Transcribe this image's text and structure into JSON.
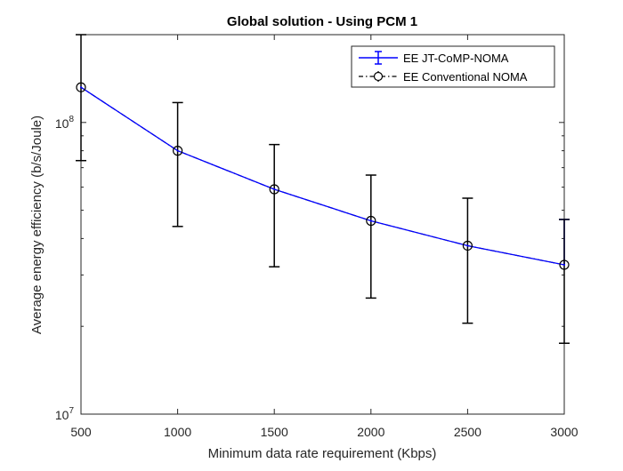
{
  "chart_data": {
    "type": "line",
    "title": "Global solution - Using PCM 1",
    "xlabel": "Minimum data rate requirement (Kbps)",
    "ylabel": "Average energy efficiency (b/s/Joule)",
    "xlim": [
      500,
      3000
    ],
    "ylim": [
      10000000,
      200000000
    ],
    "yscale": "log",
    "x_ticks": [
      500,
      1000,
      1500,
      2000,
      2500,
      3000
    ],
    "x_tick_labels": [
      "500",
      "1000",
      "1500",
      "2000",
      "2500",
      "3000"
    ],
    "y_ticks": [
      {
        "value": 10000000,
        "base": "10",
        "exp": "7"
      },
      {
        "value": 100000000,
        "base": "10",
        "exp": "8"
      }
    ],
    "grid": false,
    "legend_position": "top-right",
    "x": [
      500,
      1000,
      1500,
      2000,
      2500,
      3000
    ],
    "series": [
      {
        "name": "EE JT-CoMP-NOMA",
        "color": "#0000ff",
        "marker": "none",
        "values": [
          132000000,
          80000000,
          59000000,
          46000000,
          37800000,
          32500000
        ],
        "err_low": [
          null,
          null,
          null,
          null,
          null,
          null
        ],
        "err_high": [
          null,
          null,
          null,
          null,
          null,
          46500000
        ]
      },
      {
        "name": "EE Conventional NOMA",
        "color": "#000000",
        "marker": "circle",
        "values": [
          132000000,
          80000000,
          59000000,
          46000000,
          37800000,
          32500000
        ],
        "err_low": [
          74000000,
          44000000,
          32000000,
          25000000,
          20500000,
          17500000
        ],
        "err_high": [
          200000000,
          117000000,
          84000000,
          66000000,
          55000000,
          46500000
        ]
      }
    ]
  },
  "colors": {
    "axis": "#262626",
    "background": "#ffffff"
  }
}
